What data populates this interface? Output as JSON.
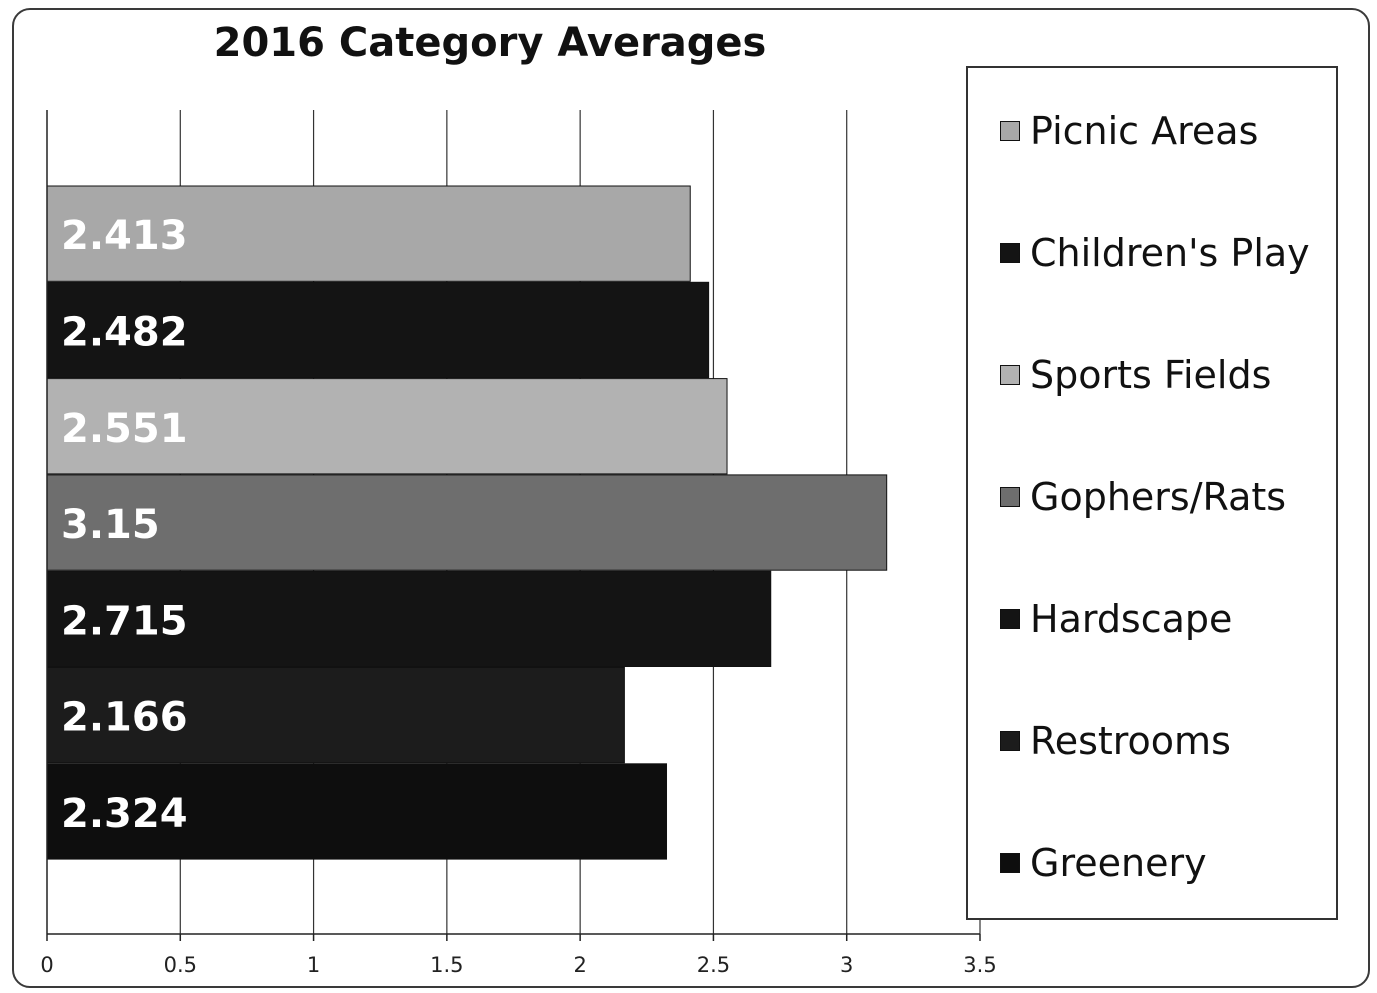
{
  "chart_data": {
    "type": "bar",
    "orientation": "horizontal",
    "title": "2016 Category Averages",
    "categories": [
      "Picnic Areas",
      "Children's Play",
      "Sports Fields",
      "Gophers/Rats",
      "Hardscape",
      "Restrooms",
      "Greenery"
    ],
    "values": [
      2.413,
      2.482,
      2.551,
      3.15,
      2.715,
      2.166,
      2.324
    ],
    "data_labels": [
      "2.413",
      "2.482",
      "2.551",
      "3.15",
      "2.715",
      "2.166",
      "2.324"
    ],
    "colors": [
      "#a8a8a8",
      "#141414",
      "#b2b2b2",
      "#6e6e6e",
      "#141414",
      "#1c1c1c",
      "#0e0e0e"
    ],
    "xlim": [
      0,
      3.5
    ],
    "xticks": [
      "0",
      "0.5",
      "1",
      "1.5",
      "2",
      "2.5",
      "3",
      "3.5"
    ],
    "xtick_values": [
      0,
      0.5,
      1,
      1.5,
      2,
      2.5,
      3,
      3.5
    ],
    "grid": true,
    "legend_position": "right"
  }
}
